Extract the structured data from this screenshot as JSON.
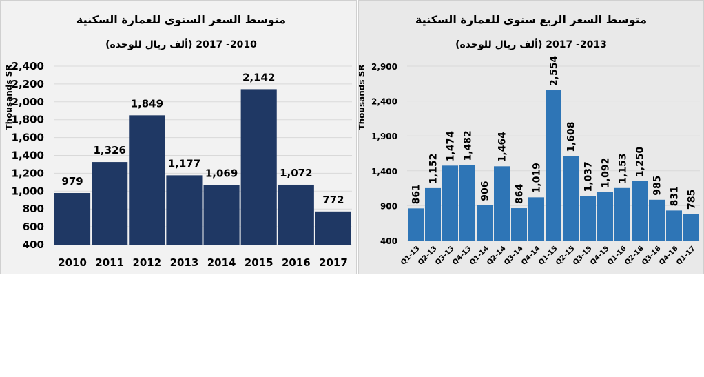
{
  "chart_data": [
    {
      "type": "bar",
      "title": "متوسط السعر السنوي للعمارة السكنية",
      "subtitle": "(ألف ريال للوحدة)  2010- 2017",
      "ylabel": "Thousands SR",
      "xlabel": "",
      "categories": [
        "2010",
        "2011",
        "2012",
        "2013",
        "2014",
        "2015",
        "2016",
        "2017"
      ],
      "values": [
        979,
        1326,
        1849,
        1177,
        1069,
        2142,
        1072,
        772
      ],
      "value_labels": [
        "979",
        "1,326",
        "1,849",
        "1,177",
        "1,069",
        "2,142",
        "1,072",
        "772"
      ],
      "ylim": [
        400,
        2400
      ],
      "yticks": [
        "400",
        "600",
        "800",
        "1,000",
        "1,200",
        "1,400",
        "1,600",
        "1,800",
        "2,000",
        "2,200",
        "2,400"
      ],
      "grid": true,
      "legend": "none",
      "colors": {
        "bar": "#1f3864",
        "background": "#f2f2f2"
      }
    },
    {
      "type": "bar",
      "title": "متوسط السعر الربع سنوي للعمارة السكنية",
      "subtitle": "(ألف ريال للوحدة) 2013- 2017",
      "ylabel": "Thousands SR",
      "xlabel": "",
      "categories": [
        "Q1-13",
        "Q2-13",
        "Q3-13",
        "Q4-13",
        "Q1-14",
        "Q2-14",
        "Q3-14",
        "Q4-14",
        "Q1-15",
        "Q2-15",
        "Q3-15",
        "Q4-15",
        "Q1-16",
        "Q2-16",
        "Q3-16",
        "Q4-16",
        "Q1-17"
      ],
      "values": [
        861,
        1152,
        1474,
        1482,
        906,
        1464,
        864,
        1019,
        2554,
        1608,
        1037,
        1092,
        1153,
        1250,
        985,
        831,
        785
      ],
      "value_labels": [
        "861",
        "1,152",
        "1,474",
        "1,482",
        "906",
        "1,464",
        "864",
        "1,019",
        "2,554",
        "1,608",
        "1,037",
        "1,092",
        "1,153",
        "1,250",
        "985",
        "831",
        "785"
      ],
      "ylim": [
        400,
        2900
      ],
      "yticks": [
        "400",
        "900",
        "1,400",
        "1,900",
        "2,400",
        "2,900"
      ],
      "grid": true,
      "legend": "none",
      "colors": {
        "bar": "#2e75b6",
        "background": "#e9e9e9"
      }
    }
  ]
}
